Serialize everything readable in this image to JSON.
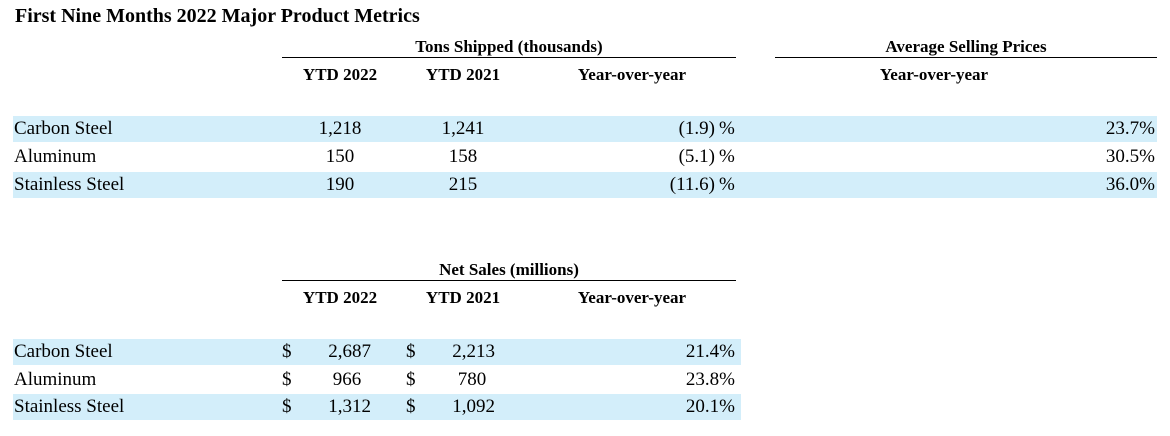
{
  "title": "First Nine Months 2022 Major Product Metrics",
  "tons": {
    "heading": "Tons Shipped (thousands)",
    "col_ytd2022": "YTD 2022",
    "col_ytd2021": "YTD 2021",
    "col_yoy": "Year-over-year",
    "rows": [
      {
        "product": "Carbon Steel",
        "ytd2022": "1,218",
        "ytd2021": "1,241",
        "yoy": "(1.9)",
        "pct": "%"
      },
      {
        "product": "Aluminum",
        "ytd2022": "150",
        "ytd2021": "158",
        "yoy": "(5.1)",
        "pct": "%"
      },
      {
        "product": "Stainless Steel",
        "ytd2022": "190",
        "ytd2021": "215",
        "yoy": "(11.6)",
        "pct": "%"
      }
    ]
  },
  "asp": {
    "heading": "Average Selling Prices",
    "col_yoy": "Year-over-year",
    "values": [
      "23.7%",
      "30.5%",
      "36.0%"
    ]
  },
  "sales": {
    "heading": "Net Sales (millions)",
    "col_ytd2022": "YTD 2022",
    "col_ytd2021": "YTD 2021",
    "col_yoy": "Year-over-year",
    "currency": "$",
    "rows": [
      {
        "product": "Carbon Steel",
        "ytd2022": "2,687",
        "ytd2021": "2,213",
        "yoy": "21.4%"
      },
      {
        "product": "Aluminum",
        "ytd2022": "966",
        "ytd2021": "780",
        "yoy": "23.8%"
      },
      {
        "product": "Stainless Steel",
        "ytd2022": "1,312",
        "ytd2021": "1,092",
        "yoy": "20.1%"
      }
    ]
  }
}
